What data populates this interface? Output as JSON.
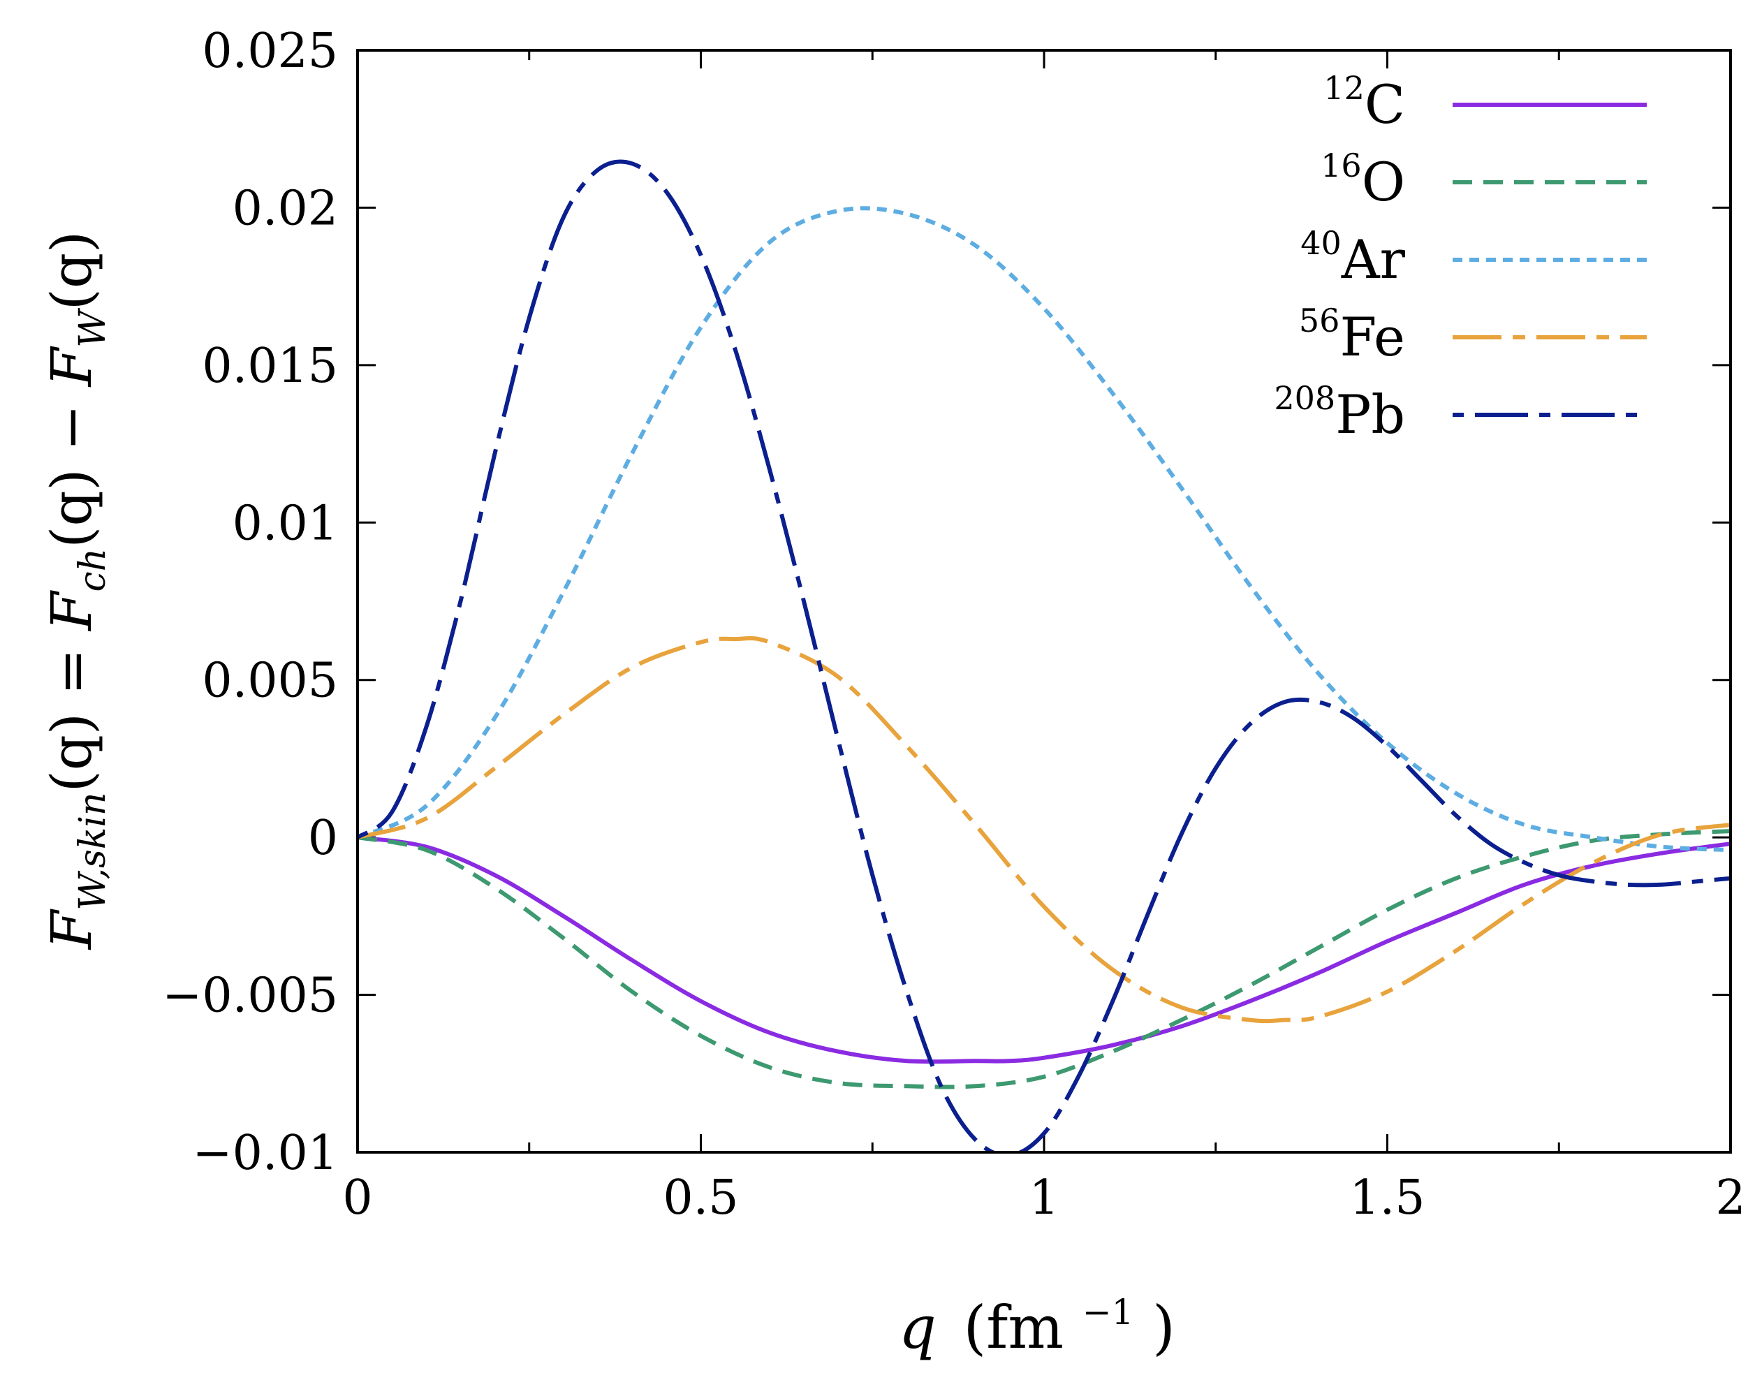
{
  "chart_data": {
    "type": "line",
    "title": "",
    "xlabel": {
      "main": "q",
      "unit_open": "(fm",
      "unit_sup": "−1",
      "unit_close": ")"
    },
    "ylabel": {
      "lhs": "F",
      "lhs_sub": "W,skin",
      "lhs_arg": "(q) = ",
      "ch": "F",
      "ch_sub": "ch",
      "ch_arg": "(q) − ",
      "w": "F",
      "w_sub": "W",
      "w_arg": "(q)"
    },
    "xlim": [
      0,
      2
    ],
    "ylim": [
      -0.01,
      0.025
    ],
    "x_ticks": [
      0,
      0.5,
      1,
      1.5,
      2
    ],
    "x_tick_labels": [
      "0",
      "0.5",
      "1",
      "1.5",
      "2"
    ],
    "x_minor_ticks": [
      0.25,
      0.75,
      1.25,
      1.75
    ],
    "y_ticks": [
      -0.01,
      -0.005,
      0,
      0.005,
      0.01,
      0.015,
      0.02,
      0.025
    ],
    "y_tick_labels": [
      "−0.01",
      "−0.005",
      "0",
      "0.005",
      "0.01",
      "0.015",
      "0.02",
      "0.025"
    ],
    "legend_position": "top-right",
    "series": [
      {
        "name": "12C",
        "sup": "12",
        "element": "C",
        "color": "#8A2BE2",
        "dash": "none",
        "x": [
          0,
          0.1,
          0.2,
          0.3,
          0.4,
          0.5,
          0.6,
          0.7,
          0.8,
          0.9,
          0.95,
          1.0,
          1.1,
          1.2,
          1.3,
          1.4,
          1.5,
          1.6,
          1.7,
          1.8,
          1.9,
          2.0
        ],
        "y": [
          0,
          -0.0003,
          -0.0012,
          -0.0025,
          -0.0039,
          -0.0052,
          -0.0062,
          -0.0068,
          -0.0071,
          -0.0071,
          -0.0071,
          -0.007,
          -0.0066,
          -0.006,
          -0.0052,
          -0.0043,
          -0.0033,
          -0.0024,
          -0.0015,
          -0.0009,
          -0.0005,
          -0.0002
        ]
      },
      {
        "name": "16O",
        "sup": "16",
        "element": "O",
        "color": "#3D9970",
        "dash": "28 16",
        "x": [
          0,
          0.1,
          0.2,
          0.3,
          0.4,
          0.5,
          0.6,
          0.7,
          0.8,
          0.9,
          1.0,
          1.1,
          1.2,
          1.3,
          1.4,
          1.5,
          1.6,
          1.7,
          1.8,
          1.9,
          2.0
        ],
        "y": [
          0,
          -0.0004,
          -0.0016,
          -0.0032,
          -0.0049,
          -0.0063,
          -0.0073,
          -0.0078,
          -0.0079,
          -0.0079,
          -0.0076,
          -0.0068,
          -0.0058,
          -0.0047,
          -0.0035,
          -0.0023,
          -0.0013,
          -0.0006,
          -0.0001,
          0.0001,
          0.0002
        ]
      },
      {
        "name": "40Ar",
        "sup": "40",
        "element": "Ar",
        "color": "#5DADE2",
        "dash": "14 10",
        "x": [
          0,
          0.1,
          0.2,
          0.3,
          0.4,
          0.5,
          0.6,
          0.7,
          0.8,
          0.9,
          1.0,
          1.1,
          1.2,
          1.3,
          1.4,
          1.5,
          1.6,
          1.7,
          1.8,
          1.9,
          2.0
        ],
        "y": [
          0,
          0.001,
          0.0038,
          0.0078,
          0.0122,
          0.0162,
          0.0189,
          0.0199,
          0.0198,
          0.0188,
          0.0168,
          0.0141,
          0.0111,
          0.008,
          0.0052,
          0.003,
          0.0014,
          0.0004,
          0.0,
          -0.0003,
          -0.0004
        ]
      },
      {
        "name": "56Fe",
        "sup": "56",
        "element": "Fe",
        "color": "#E8A33C",
        "dash": "70 16 18 16",
        "x": [
          0,
          0.1,
          0.2,
          0.3,
          0.4,
          0.5,
          0.55,
          0.6,
          0.7,
          0.8,
          0.9,
          1.0,
          1.1,
          1.2,
          1.3,
          1.35,
          1.4,
          1.5,
          1.6,
          1.7,
          1.8,
          1.9,
          2.0
        ],
        "y": [
          0,
          0.0006,
          0.0022,
          0.0039,
          0.0054,
          0.0062,
          0.0063,
          0.0062,
          0.0051,
          0.0029,
          0.0004,
          -0.0022,
          -0.0042,
          -0.0054,
          -0.0058,
          -0.0058,
          -0.0057,
          -0.0049,
          -0.0036,
          -0.0021,
          -0.0008,
          0.0001,
          0.0004
        ]
      },
      {
        "name": "208Pb",
        "sup": "208",
        "element": "Pb",
        "color": "#0B1F8F",
        "dash": "16 16 76 16",
        "x": [
          0,
          0.05,
          0.1,
          0.15,
          0.2,
          0.25,
          0.3,
          0.35,
          0.4,
          0.45,
          0.5,
          0.55,
          0.6,
          0.65,
          0.7,
          0.75,
          0.8,
          0.85,
          0.9,
          0.95,
          1.0,
          1.05,
          1.1,
          1.15,
          1.2,
          1.25,
          1.3,
          1.35,
          1.4,
          1.45,
          1.5,
          1.55,
          1.6,
          1.65,
          1.7,
          1.75,
          1.8,
          1.85,
          1.9,
          1.95,
          2.0
        ],
        "y": [
          0,
          0.0008,
          0.0035,
          0.0075,
          0.0122,
          0.0165,
          0.0197,
          0.0212,
          0.0214,
          0.0205,
          0.0185,
          0.0155,
          0.0117,
          0.0075,
          0.0031,
          -0.0012,
          -0.0049,
          -0.0079,
          -0.0096,
          -0.0101,
          -0.0094,
          -0.0076,
          -0.0052,
          -0.0025,
          0.0001,
          0.0022,
          0.0036,
          0.0043,
          0.0043,
          0.0038,
          0.0029,
          0.0018,
          0.0007,
          -0.0002,
          -0.0008,
          -0.0012,
          -0.0014,
          -0.0015,
          -0.0015,
          -0.0014,
          -0.0013
        ]
      }
    ]
  }
}
